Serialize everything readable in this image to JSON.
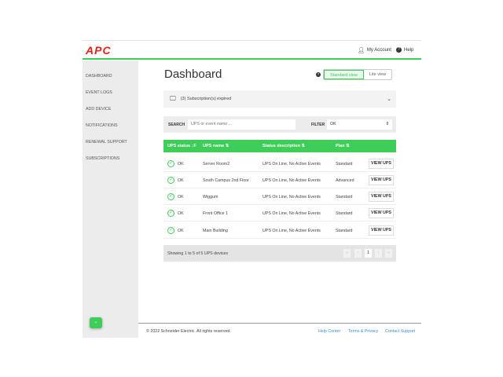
{
  "header": {
    "logo": "APC",
    "my_account": "My Account",
    "help": "Help"
  },
  "sidebar": {
    "items": [
      {
        "label": "DASHBOARD"
      },
      {
        "label": "EVENT LOGS"
      },
      {
        "label": "ADD DEVICE"
      },
      {
        "label": "NOTIFICATIONS"
      },
      {
        "label": "RENEWAL SUPPORT"
      },
      {
        "label": "SUBSCRIPTIONS"
      }
    ]
  },
  "main": {
    "title": "Dashboard",
    "views": {
      "standard": "Standard view",
      "lite": "Lite view",
      "active": "Standard view"
    },
    "subscription_notice": "(3) Subscription(s) expired",
    "search": {
      "label": "SEARCH",
      "placeholder": "UPS or event name ...",
      "value": ""
    },
    "filter": {
      "label": "FILTER",
      "value": "OK"
    },
    "table": {
      "columns": [
        "UPS status ↓F",
        "UPS name ⇅",
        "Status description ⇅",
        "Plan ⇅"
      ],
      "rows": [
        {
          "status": "OK",
          "name": "Server Room2",
          "description": "UPS On Line, No Active Events",
          "plan": "Standard",
          "action": "VIEW UPS"
        },
        {
          "status": "OK",
          "name": "South Campus 2nd Floor",
          "description": "UPS On Line, No Active Events",
          "plan": "Advanced",
          "action": "VIEW UPS"
        },
        {
          "status": "OK",
          "name": "Wiggum",
          "description": "UPS On Line, No Active Events",
          "plan": "Standard",
          "action": "VIEW UPS"
        },
        {
          "status": "OK",
          "name": "Front Office 1",
          "description": "UPS On Line, No Active Events",
          "plan": "Standard",
          "action": "VIEW UPS"
        },
        {
          "status": "OK",
          "name": "Main Building",
          "description": "UPS On Line, No Active Events",
          "plan": "Standard",
          "action": "VIEW UPS"
        }
      ]
    },
    "pagination": {
      "summary": "Showing 1 to 5 of 5 UPS devices",
      "first": "«",
      "prev": "‹",
      "page": "1",
      "next": "›",
      "last": "»"
    }
  },
  "footer": {
    "copyright": "© 2022 Schneider Electric. All rights reserved.",
    "links": [
      "Help Center",
      "Terms & Privacy",
      "Contact Support"
    ]
  },
  "colors": {
    "accent": "#3dcd58",
    "brand": "#e2231a",
    "link": "#3a8fd6"
  }
}
